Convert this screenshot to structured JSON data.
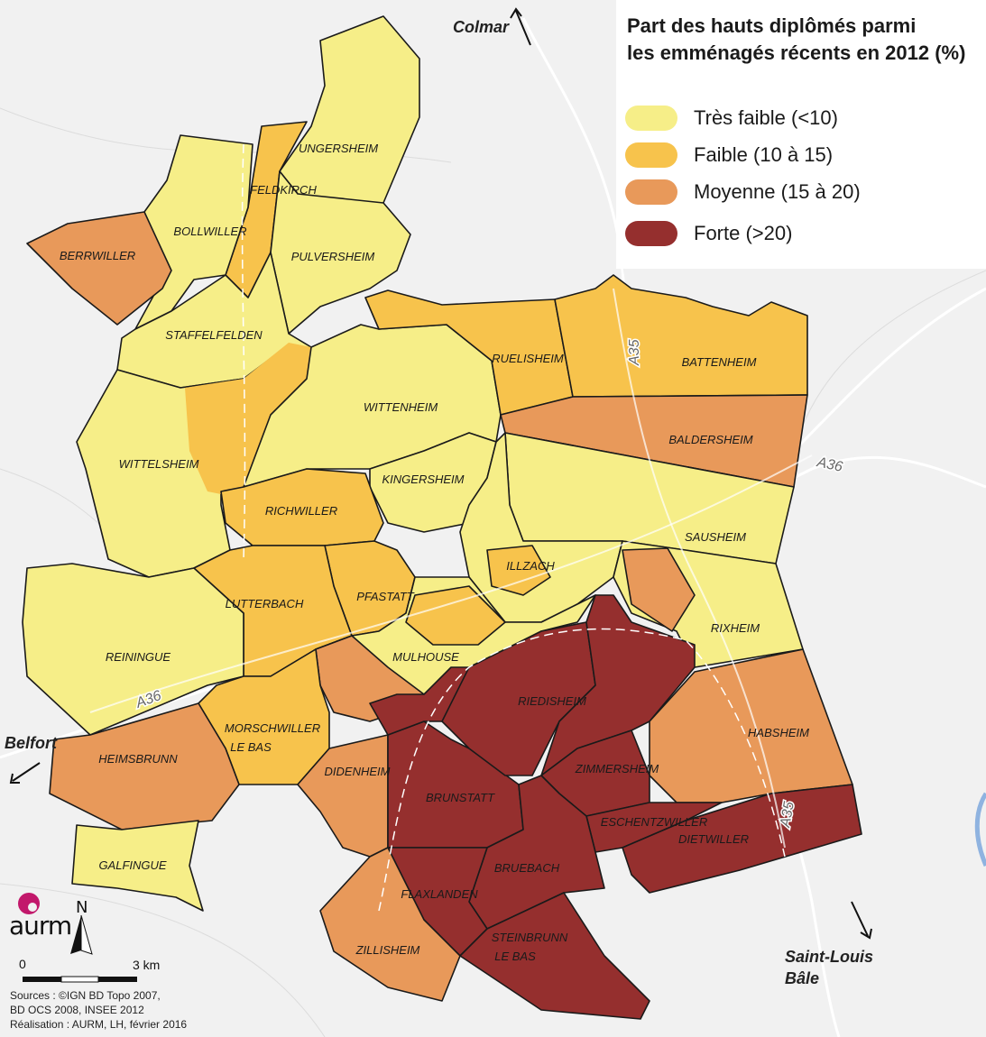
{
  "legend": {
    "title_line1": "Part des hauts diplômés parmi",
    "title_line2": "les emménagés récents en 2012 (%)",
    "classes": [
      {
        "id": "tf",
        "label": "Très faible (<10)",
        "color": "#f6ee88"
      },
      {
        "id": "f",
        "label": "Faible (10 à 15)",
        "color": "#f7c34c"
      },
      {
        "id": "m",
        "label": "Moyenne (15 à 20)",
        "color": "#e8995a"
      },
      {
        "id": "fo",
        "label": "Forte (>20)",
        "color": "#952f2e"
      }
    ]
  },
  "communes": [
    {
      "name": "UNGERSHEIM",
      "class": "tf"
    },
    {
      "name": "FELDKIRCH",
      "class": "f"
    },
    {
      "name": "BOLLWILLER",
      "class": "tf"
    },
    {
      "name": "BERRWILLER",
      "class": "m"
    },
    {
      "name": "PULVERSHEIM",
      "class": "tf"
    },
    {
      "name": "STAFFELFELDEN",
      "class": "tf"
    },
    {
      "name": "WITTELSHEIM",
      "class": "tf"
    },
    {
      "name": "WITTENHEIM",
      "class": "tf"
    },
    {
      "name": "RUELISHEIM",
      "class": "f"
    },
    {
      "name": "BATTENHEIM",
      "class": "f"
    },
    {
      "name": "BALDERSHEIM",
      "class": "m"
    },
    {
      "name": "SAUSHEIM",
      "class": "tf"
    },
    {
      "name": "KINGERSHEIM",
      "class": "tf"
    },
    {
      "name": "RICHWILLER",
      "class": "f"
    },
    {
      "name": "ILLZACH",
      "class": "tf"
    },
    {
      "name": "PFASTATT",
      "class": "f"
    },
    {
      "name": "LUTTERBACH",
      "class": "f"
    },
    {
      "name": "REININGUE",
      "class": "tf"
    },
    {
      "name": "MULHOUSE",
      "class": "tf"
    },
    {
      "name": "MORSCHWILLER",
      "name_line2": "LE BAS",
      "class": "f"
    },
    {
      "name": "HEIMSBRUNN",
      "class": "m"
    },
    {
      "name": "GALFINGUE",
      "class": "tf"
    },
    {
      "name": "DIDENHEIM",
      "class": "m"
    },
    {
      "name": "BRUNSTATT",
      "class": "fo"
    },
    {
      "name": "RIEDISHEIM",
      "class": "fo"
    },
    {
      "name": "RIXHEIM",
      "class": "tf"
    },
    {
      "name": "HABSHEIM",
      "class": "m"
    },
    {
      "name": "ZIMMERSHEIM",
      "class": "fo"
    },
    {
      "name": "ESCHENTZWILLER",
      "class": "fo"
    },
    {
      "name": "DIETWILLER",
      "class": "fo"
    },
    {
      "name": "BRUEBACH",
      "class": "fo"
    },
    {
      "name": "FLAXLANDEN",
      "class": "fo"
    },
    {
      "name": "STEINBRUNN",
      "name_line2": "LE BAS",
      "class": "fo"
    },
    {
      "name": "ZILLISHEIM",
      "class": "m"
    }
  ],
  "places": {
    "colmar": "Colmar",
    "belfort": "Belfort",
    "saint_louis": "Saint-Louis",
    "bale": "Bâle"
  },
  "roads": {
    "a35_north": "A35",
    "a35_south": "A35",
    "a36_west": "A36",
    "a36_east": "A36"
  },
  "logo": {
    "text": "aurm",
    "color": "#c2186b"
  },
  "north": "N",
  "scale": {
    "start": "0",
    "end": "3 km"
  },
  "sources": [
    "Sources :  ©IGN BD Topo 2007,",
    "BD OCS 2008, INSEE 2012",
    "Réalisation : AURM, LH, février 2016"
  ]
}
